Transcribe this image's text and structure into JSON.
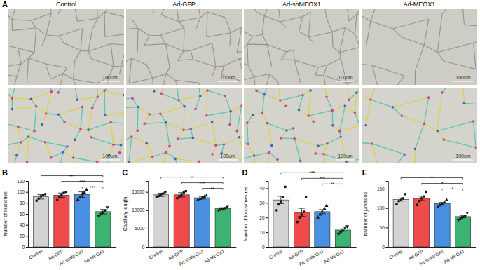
{
  "panel_a": {
    "label": "A",
    "columns": [
      "Control",
      "Ad-GFP",
      "Ad-shMEOX1",
      "Ad-MEOX1"
    ],
    "scale_bar": "100um"
  },
  "chart_data": [
    {
      "type": "bar",
      "panel": "B",
      "y_label": "Number of branches",
      "categories": [
        "Control",
        "Ad-GFP",
        "Ad-shMEOX1",
        "Ad-MEOX1"
      ],
      "values": [
        91,
        94,
        95,
        64
      ],
      "errors": [
        4,
        4,
        5,
        4
      ],
      "points": [
        [
          84,
          88,
          92,
          95,
          96
        ],
        [
          85,
          90,
          95,
          98,
          100
        ],
        [
          86,
          90,
          96,
          99,
          104
        ],
        [
          57,
          60,
          63,
          66,
          72
        ]
      ],
      "colors": [
        "#d3d3d3",
        "#f04b4b",
        "#4a90e2",
        "#3cb371"
      ],
      "ylim": [
        0,
        120
      ],
      "yticks": [
        0,
        20,
        40,
        60,
        80,
        100,
        120
      ],
      "annotations": [
        {
          "text": "***",
          "from": 0,
          "to": 3
        },
        {
          "text": "***",
          "from": 1,
          "to": 3
        },
        {
          "text": "***",
          "from": 2,
          "to": 3
        }
      ]
    },
    {
      "type": "bar",
      "panel": "C",
      "y_label": "Capillary length",
      "categories": [
        "Control",
        "Ad-GFP",
        "Ad-shMEOX1",
        "Ad-MEOX1"
      ],
      "values": [
        14200,
        14200,
        13400,
        10400
      ],
      "errors": [
        450,
        600,
        350,
        300
      ],
      "points": [
        [
          13700,
          13900,
          14300,
          14600,
          15000
        ],
        [
          13300,
          13800,
          14300,
          14800,
          15200
        ],
        [
          12800,
          13100,
          13400,
          13700,
          14000
        ],
        [
          9900,
          10200,
          10400,
          10600,
          10900
        ]
      ],
      "colors": [
        "#d3d3d3",
        "#f04b4b",
        "#4a90e2",
        "#3cb371"
      ],
      "ylim": [
        0,
        18000
      ],
      "yticks": [
        0,
        5000,
        10000,
        15000
      ],
      "annotations": [
        {
          "text": "**",
          "from": 0,
          "to": 3
        },
        {
          "text": "***",
          "from": 1,
          "to": 3
        },
        {
          "text": "**",
          "from": 2,
          "to": 3
        }
      ]
    },
    {
      "type": "bar",
      "panel": "D",
      "y_label": "Number of loops/meshes",
      "categories": [
        "Control",
        "Ad-GFP",
        "Ad-shMEOX1",
        "Ad-MEOX1"
      ],
      "values": [
        32,
        23.5,
        24,
        11.5
      ],
      "errors": [
        2.5,
        2.8,
        1.4,
        0.8
      ],
      "points": [
        [
          25,
          29,
          31,
          34,
          41
        ],
        [
          17,
          20,
          22,
          24,
          34
        ],
        [
          20,
          22,
          24,
          26,
          28
        ],
        [
          9,
          10,
          11,
          13,
          14
        ]
      ],
      "colors": [
        "#d3d3d3",
        "#f04b4b",
        "#4a90e2",
        "#3cb371"
      ],
      "ylim": [
        0,
        45
      ],
      "yticks": [
        0,
        10,
        20,
        30,
        40
      ],
      "annotations": [
        {
          "text": "***",
          "from": 0,
          "to": 3
        },
        {
          "text": "***",
          "from": 1,
          "to": 3
        },
        {
          "text": "**",
          "from": 2,
          "to": 3
        }
      ]
    },
    {
      "type": "bar",
      "panel": "E",
      "y_label": "Number of junctions",
      "categories": [
        "Control",
        "Ad-GFP",
        "Ad-shMEOX1",
        "Ad-MEOX1"
      ],
      "values": [
        122,
        125,
        111,
        78
      ],
      "errors": [
        4,
        5.5,
        3.5,
        3
      ],
      "points": [
        [
          110,
          118,
          121,
          125,
          136
        ],
        [
          108,
          118,
          125,
          130,
          142
        ],
        [
          102,
          107,
          110,
          115,
          121
        ],
        [
          70,
          74,
          77,
          80,
          88
        ]
      ],
      "colors": [
        "#d3d3d3",
        "#f04b4b",
        "#4a90e2",
        "#3cb371"
      ],
      "ylim": [
        0,
        170
      ],
      "yticks": [
        0,
        50,
        100,
        150
      ],
      "annotations": [
        {
          "text": "*",
          "from": 0,
          "to": 3
        },
        {
          "text": "*",
          "from": 1,
          "to": 3
        },
        {
          "text": "*",
          "from": 2,
          "to": 3
        }
      ]
    }
  ]
}
